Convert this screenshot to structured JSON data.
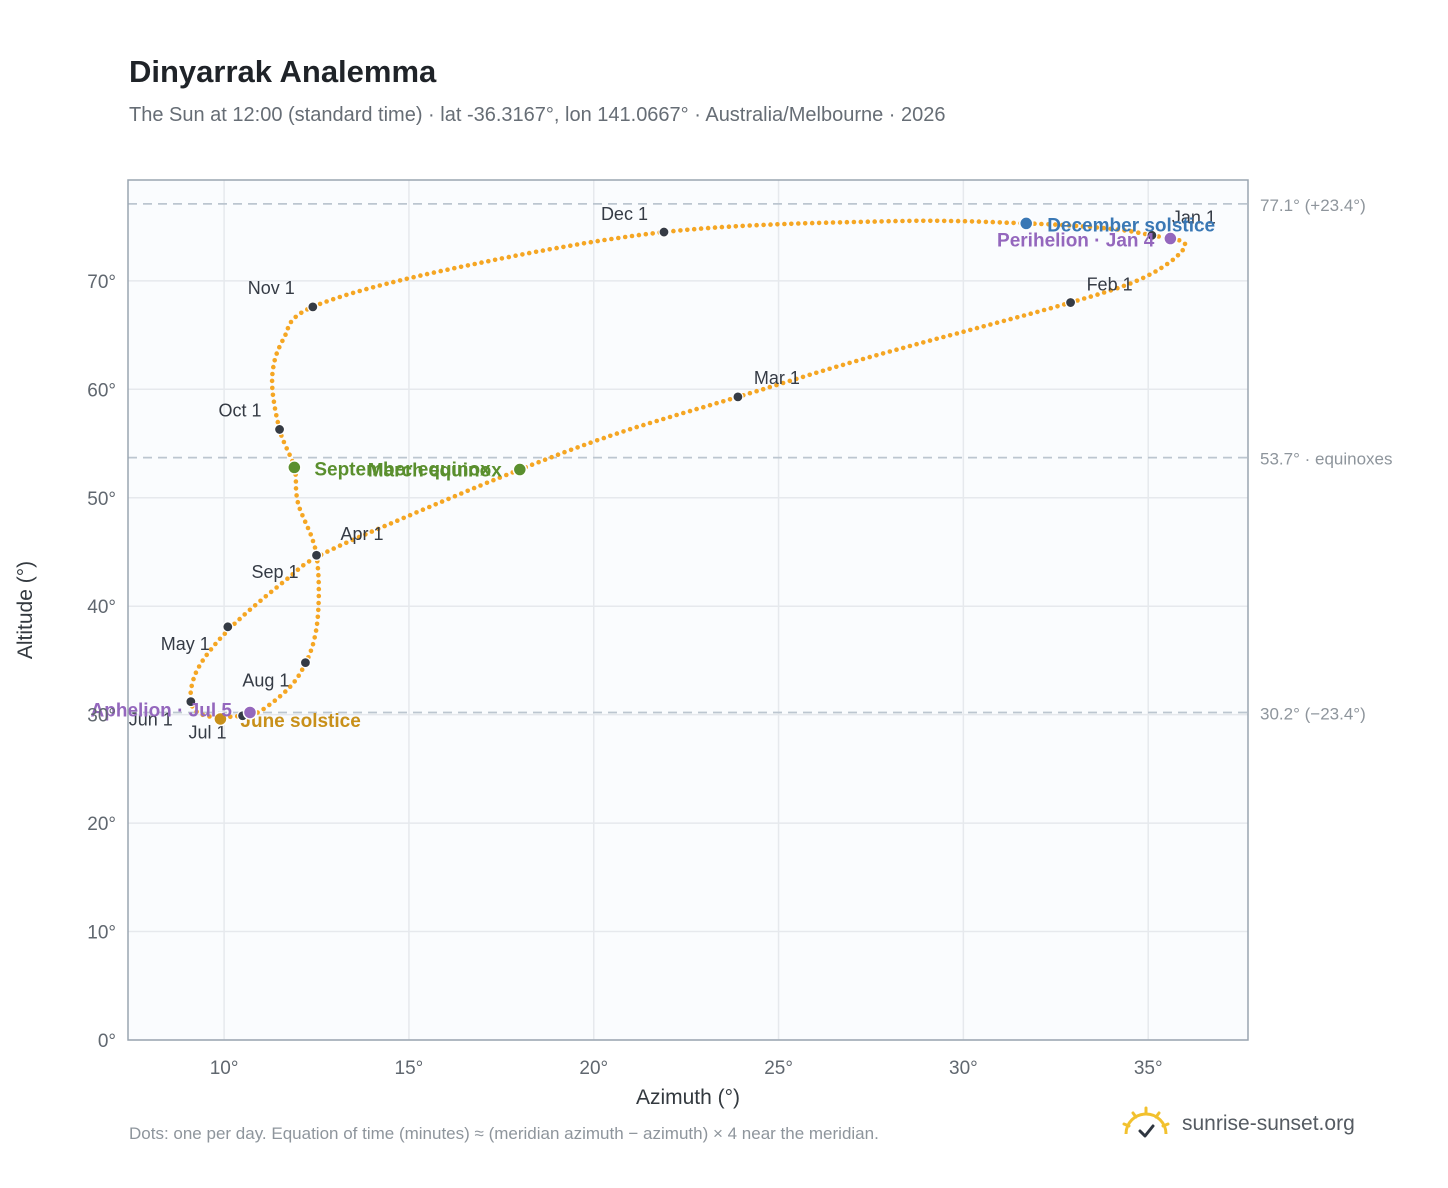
{
  "title": "Dinyarrak Analemma",
  "subtitle": "The Sun at 12:00 (standard time) · lat -36.3167°, lon 141.0667° · Australia/Melbourne · 2026",
  "footnote": "Dots: one per day. Equation of time (minutes) ≈ (meridian azimuth − azimuth) × 4 near the meridian.",
  "brand": {
    "name": "sunrise-sunset.org",
    "icon": "sun-logo-icon"
  },
  "colors": {
    "path": "#f5a623",
    "month": "#353b45",
    "march": "#5a8f2e",
    "september": "#5a8f2e",
    "june": "#c8901a",
    "december": "#3a78b5",
    "perihelion": "#9467bd",
    "aphelion": "#9467bd",
    "grid": "#e6e9ed",
    "plot_bg": "#fafcfe",
    "frame": "#9aa5b1",
    "refline": "#bcc6d0"
  },
  "chart_data": {
    "type": "scatter",
    "xlabel": "Azimuth (°)",
    "ylabel": "Altitude (°)",
    "xlim": [
      7.4,
      37.7
    ],
    "ylim": [
      0,
      79.3
    ],
    "xticks": [
      10,
      15,
      20,
      25,
      30,
      35
    ],
    "xtick_labels": [
      "10°",
      "15°",
      "20°",
      "25°",
      "30°",
      "35°"
    ],
    "yticks": [
      0,
      10,
      20,
      30,
      40,
      50,
      60,
      70
    ],
    "ytick_labels": [
      "0°",
      "10°",
      "20°",
      "30°",
      "40°",
      "50°",
      "60°",
      "70°"
    ],
    "grid": true,
    "path_anchors": [
      [
        35.1,
        74.2
      ],
      [
        36.0,
        73.3
      ],
      [
        35.0,
        70.5
      ],
      [
        32.9,
        68.0
      ],
      [
        27.5,
        63.0
      ],
      [
        23.9,
        59.3
      ],
      [
        20.7,
        56.0
      ],
      [
        18.0,
        52.6
      ],
      [
        14.9,
        48.2
      ],
      [
        12.6,
        44.7
      ],
      [
        11.7,
        42.5
      ],
      [
        10.2,
        38.1
      ],
      [
        9.3,
        34.3
      ],
      [
        9.1,
        31.2
      ],
      [
        9.5,
        29.9
      ],
      [
        10.5,
        29.9
      ],
      [
        11.1,
        30.6
      ],
      [
        12.0,
        33.5
      ],
      [
        12.5,
        38.0
      ],
      [
        12.5,
        44.7
      ],
      [
        12.0,
        49.5
      ],
      [
        11.9,
        52.8
      ],
      [
        11.5,
        56.3
      ],
      [
        11.3,
        61.0
      ],
      [
        11.6,
        64.6
      ],
      [
        12.4,
        67.6
      ],
      [
        16.0,
        71.0
      ],
      [
        21.9,
        74.5
      ],
      [
        28.0,
        75.5
      ],
      [
        31.7,
        75.3
      ],
      [
        34.0,
        74.8
      ],
      [
        35.1,
        74.2
      ]
    ],
    "refs": [
      {
        "y": 77.1,
        "label": "77.1° (+23.4°)"
      },
      {
        "y": 53.7,
        "label": "53.7° · equinoxes"
      },
      {
        "y": 30.2,
        "label": "30.2° (−23.4°)"
      }
    ],
    "months": [
      {
        "label": "Jan 1",
        "x": 35.1,
        "y": 74.2
      },
      {
        "label": "Feb 1",
        "x": 32.9,
        "y": 68.0
      },
      {
        "label": "Mar 1",
        "x": 23.9,
        "y": 59.3
      },
      {
        "label": "Apr 1",
        "x": 12.5,
        "y": 44.7
      },
      {
        "label": "May 1",
        "x": 10.1,
        "y": 38.1
      },
      {
        "label": "Jun 1",
        "x": 9.1,
        "y": 31.2
      },
      {
        "label": "Jul 1",
        "x": 10.5,
        "y": 29.9
      },
      {
        "label": "Aug 1",
        "x": 12.2,
        "y": 34.8
      },
      {
        "label": "Sep 1",
        "x": 12.5,
        "y": 44.7
      },
      {
        "label": "Oct 1",
        "x": 11.5,
        "y": 56.3
      },
      {
        "label": "Nov 1",
        "x": 12.4,
        "y": 67.6
      },
      {
        "label": "Dec 1",
        "x": 21.9,
        "y": 74.5
      }
    ],
    "events": [
      {
        "key": "march",
        "label": "March equinox",
        "x": 18.0,
        "y": 52.6
      },
      {
        "key": "september",
        "label": "September equinox",
        "x": 11.9,
        "y": 52.8
      },
      {
        "key": "june",
        "label": "June solstice",
        "x": 9.9,
        "y": 29.6
      },
      {
        "key": "december",
        "label": "December solstice",
        "x": 31.7,
        "y": 75.3
      },
      {
        "key": "perihelion",
        "label": "Perihelion · Jan 4",
        "x": 35.6,
        "y": 73.9
      },
      {
        "key": "aphelion",
        "label": "Aphelion · Jul 5",
        "x": 10.7,
        "y": 30.2
      }
    ]
  }
}
